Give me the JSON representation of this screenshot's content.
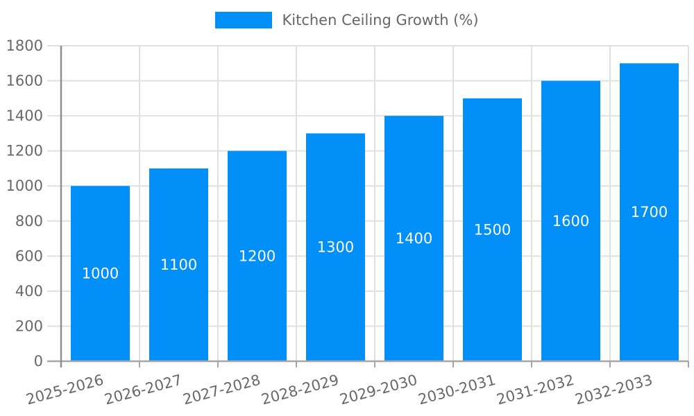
{
  "chart_data": {
    "type": "bar",
    "title": "Kitchen Ceiling Growth (%)",
    "legend": {
      "label": "Kitchen Ceiling Growth (%)",
      "position": "top-center"
    },
    "categories": [
      "2025-2026",
      "2026-2027",
      "2027-2028",
      "2028-2029",
      "2029-2030",
      "2030-2031",
      "2031-2032",
      "2032-2033"
    ],
    "values": [
      1000,
      1100,
      1200,
      1300,
      1400,
      1500,
      1600,
      1700
    ],
    "xlabel": "",
    "ylabel": "",
    "ylim": [
      0,
      1800
    ],
    "ytick_step": 200,
    "yticks": [
      0,
      200,
      400,
      600,
      800,
      1000,
      1200,
      1400,
      1600,
      1800
    ],
    "grid": true,
    "value_label_placement": "inside-center",
    "x_label_rotation_deg": -15,
    "colors": {
      "bar": "#0290f8",
      "value_label": "#ffffff",
      "tick_label": "#686868",
      "legend_label": "#666666",
      "gridline": "#e0e0e0",
      "axis_line": "#a6a6a6",
      "y_axis_line": "#8f8f8f"
    }
  }
}
